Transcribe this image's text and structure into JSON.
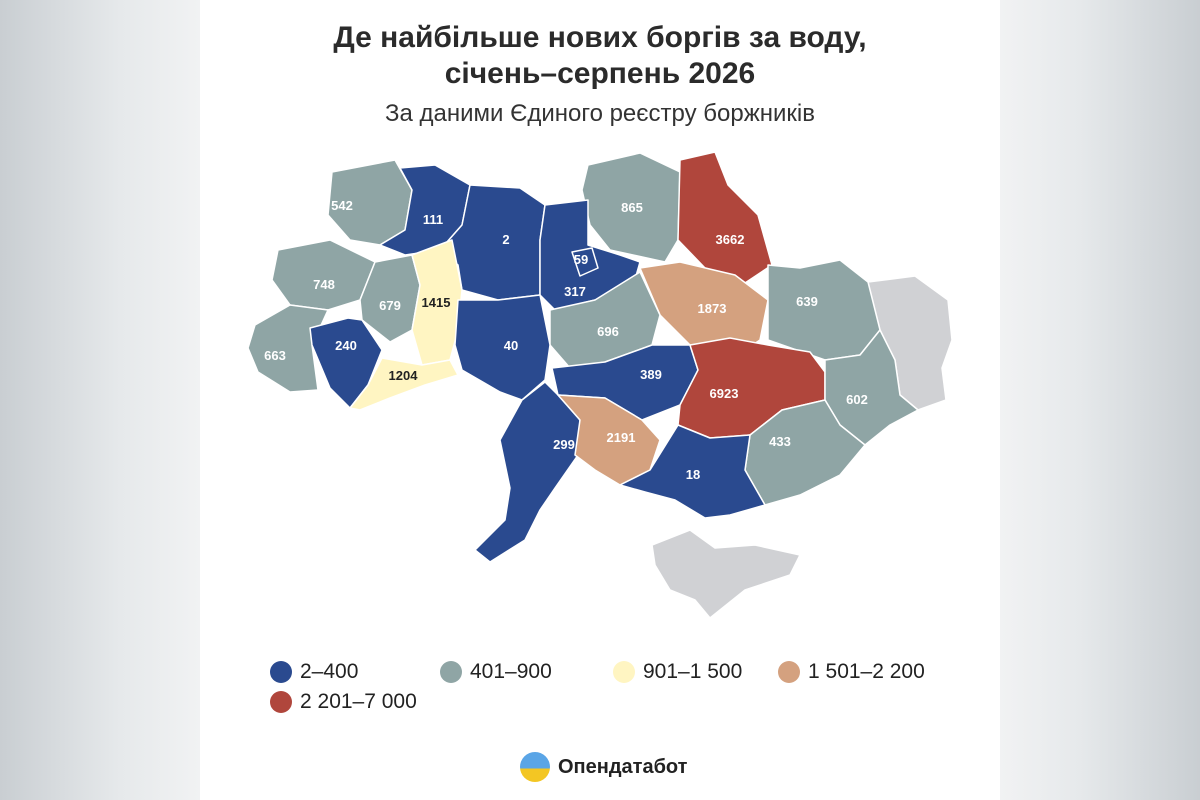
{
  "title_line1": "Де найбільше нових боргів за воду,",
  "title_line2": "січень–серпень 2026",
  "subtitle": "За даними Єдиного реєстру боржників",
  "colors": {
    "c1": "#2a4a8f",
    "c2": "#8fa5a5",
    "c3": "#fff5c2",
    "c4": "#d4a17f",
    "c5": "#b0463c",
    "nodata": "#d0d1d4",
    "border": "#ffffff"
  },
  "legend": [
    {
      "label": "2–400",
      "color": "#2a4a8f"
    },
    {
      "label": "401–900",
      "color": "#8fa5a5"
    },
    {
      "label": "901–1 500",
      "color": "#fff5c2"
    },
    {
      "label": "1 501–2 200",
      "color": "#d4a17f"
    },
    {
      "label": "2 201–7 000",
      "color": "#b0463c"
    }
  ],
  "regions": [
    {
      "value": "542"
    },
    {
      "value": "111"
    },
    {
      "value": "2"
    },
    {
      "value": "865"
    },
    {
      "value": "3662"
    },
    {
      "value": "59"
    },
    {
      "value": "317"
    },
    {
      "value": "748"
    },
    {
      "value": "679"
    },
    {
      "value": "1415"
    },
    {
      "value": "1873"
    },
    {
      "value": "639"
    },
    {
      "value": "663"
    },
    {
      "value": "240"
    },
    {
      "value": "696"
    },
    {
      "value": "40"
    },
    {
      "value": "1204"
    },
    {
      "value": "389"
    },
    {
      "value": "6923"
    },
    {
      "value": "602"
    },
    {
      "value": "299"
    },
    {
      "value": "2191"
    },
    {
      "value": "433"
    },
    {
      "value": "18"
    }
  ],
  "brand": "Опендатабот"
}
